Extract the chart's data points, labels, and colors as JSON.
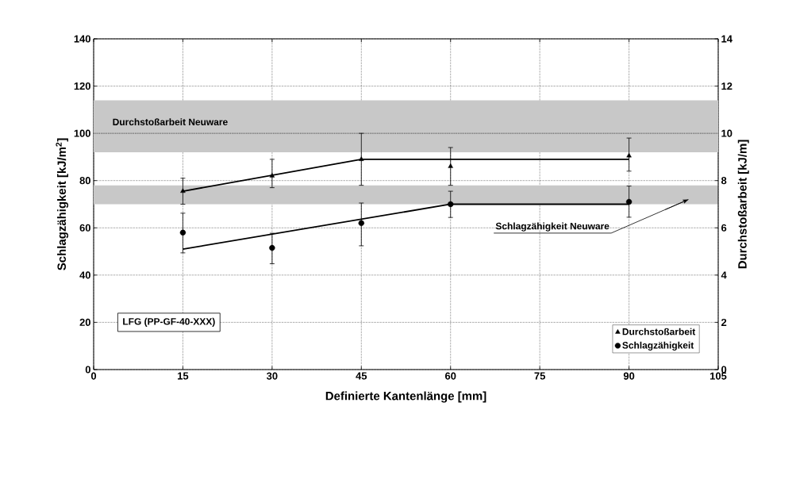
{
  "chart_data": {
    "type": "scatter",
    "xlabel": "Definierte Kantenlänge [mm]",
    "ylabel": "Schlagzähigkeit  [kJ/m$^{2}$]",
    "y2label": "Durchstoßarbeit [kJ/m]",
    "xlim": [
      0,
      105
    ],
    "xticks": [
      0,
      15,
      30,
      45,
      60,
      75,
      90,
      105
    ],
    "ylim": [
      0,
      140
    ],
    "yticks": [
      0,
      20,
      40,
      60,
      80,
      100,
      120,
      140
    ],
    "y2lim": [
      0,
      14
    ],
    "y2ticks": [
      0,
      2,
      4,
      6,
      8,
      10,
      12,
      14
    ],
    "grid": true,
    "legend": "bottom right",
    "series": [
      {
        "name": "Durchstoßarbeit",
        "color": "#000000",
        "axis": "y2",
        "marker": "triangle",
        "x": [
          15,
          30,
          45,
          60,
          90
        ],
        "values": [
          7.55,
          8.2,
          8.9,
          8.6,
          9.05
        ],
        "errors": [
          [
            7.0,
            8.1
          ],
          [
            7.7,
            8.9
          ],
          [
            7.8,
            10.0
          ],
          [
            7.8,
            9.4
          ],
          [
            8.4,
            9.8
          ]
        ]
      },
      {
        "name": "Schlagzähigkeit",
        "color": "#000000",
        "marker": "circle",
        "x": [
          15,
          30,
          45,
          60,
          90
        ],
        "values": [
          58,
          51.5,
          62,
          70,
          71
        ],
        "errors": [
          [
            49.4,
            66.2
          ],
          [
            44.8,
            57.7
          ],
          [
            52.4,
            70.5
          ],
          [
            64.4,
            75.5
          ],
          [
            64.5,
            77.7
          ]
        ]
      },
      {
        "type": "line",
        "color": "#000000",
        "axis": "y2",
        "marker": "none",
        "x": [
          15,
          45,
          90
        ],
        "values": [
          7.55,
          8.9,
          8.9
        ]
      },
      {
        "type": "line",
        "color": "#000000",
        "marker": "none",
        "x": [
          15,
          60,
          90
        ],
        "values": [
          51,
          70,
          70
        ]
      }
    ],
    "bands": [
      {
        "axis": "y2",
        "from": 9.2,
        "to": 11.4,
        "label": "Durchstoßarbeit Neuware",
        "color": "#c8c8c8"
      },
      {
        "axis": "y",
        "from": 70,
        "to": 78,
        "label": "Schlagzähigkeit Neuware",
        "color": "#c8c8c8"
      }
    ],
    "annotations": [
      "LFG (PP-GF-40-XXX)"
    ]
  }
}
